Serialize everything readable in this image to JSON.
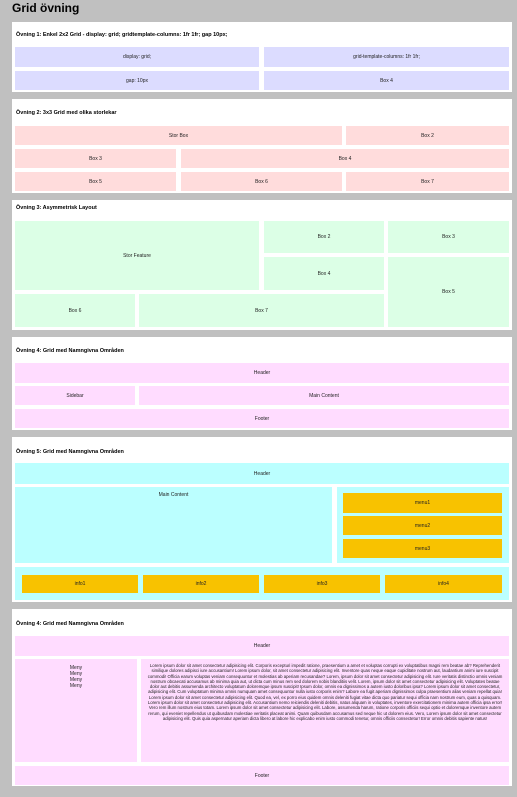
{
  "title": "Grid övning",
  "sections": [
    {
      "heading": "Övning 1: Enkel 2x2 Grid - display: grid; gridtemplate-columns: 1fr 1fr; gap 10px;",
      "cells": [
        "display: grid;",
        "grid-template-columns: 1fr 1fr;",
        "gap: 10px",
        "Box 4"
      ]
    },
    {
      "heading": "Övning 2: 3x3 Grid med olika storlekar",
      "cells": [
        "Stor Box",
        "Box 2",
        "Box 3",
        "Box 4",
        "Box 5",
        "Box 6",
        "Box 7"
      ]
    },
    {
      "heading": "Övning 3: Asymmetrisk Layout",
      "cells": [
        "Stor Feature",
        "Box 2",
        "Box 3",
        "Box 4",
        "Box 5",
        "Box 6",
        "Box 7"
      ]
    },
    {
      "heading": "Övning 4: Grid med Namngivna Områden",
      "cells": [
        "Header",
        "Sidebar",
        "Main Content",
        "Footer"
      ]
    },
    {
      "heading": "Övning 5: Grid med Namngivna Områden",
      "cells": [
        "Header",
        "Main Content",
        "menu1",
        "menu2",
        "menu3",
        "info1",
        "info2",
        "info3",
        "info4"
      ]
    },
    {
      "heading": "Övning 4: Grid med Namngivna Områden",
      "cells": [
        "Header",
        "Lorem ipsum dolor sit amet consectetur adipisicing elit. Corporis excepturi impedit ratione, praesentium a amet et voluptas corrupti ex voluptatibus magni rem beatae ab? Reprehenderit similique dolores adipisci iure accusantium! Lorem ipsum dolor, sit amet consectetur adipisicing elit. Inventore quas neque eaque cupiditate nostrum aut, laudantium animi iure suscipit commodi! Officia earum voluptas veniam consequuntur et molestias ab aperiam recusandae? Lorem, ipsum dolor sit amet consectetur adipisicing elit. Iure veritatis distinctio omnis veniam nostrum obcaecati accusamus ab minima quia aut, ut dicta cum minus rem sed dolorem nobis blanditiis velit. Lorem, ipsum dolor sit amet consectetur adipisicing elit. Voluptates beatae dolor aut debitis assumenda architecto voluptatum doloremque ipsum suscipit! Ipsum dolor, omnis ea dignissimos a autem iusto doloribus ipsa? Lorem ipsum dolor sit amet consectetur, adipisicing elit. Cum voluptatum minima omnis numquam amet consequuntur nulla iusto corporis enim? Labore ea fugit aperiam dignissimos culpa praesentium alias veniam repellat quia! Lorem ipsum dolor sit amet consectetur adipisicing elit. Quod ea, vel, ex porro eius quidem omnis deleniti fugiat vitae dicta quo pariatur sequi officia nam nostrum eum, quas a quisquam. Lorem ipsum dolor sit amet consectetur adipisicing elit. Accusantium nemo reiciendis deleniti debitis, natus aliquam in voluptates, inventore exercitationem minima autem officia ipsa error! Vero rem illum nostrum eius totam. Lorem ipsum dolor sit amet consectetur adipisicing elit. Labore, assumenda harum, ratione corporis officiis sequi optio et doloremque inventore autem rerum, qui eveniet repellendus ut quibusdam molestiae veritatis placeat animi. Quam quibusdam accusamus sed neque hic ut dolorem eius. Vero, Lorem ipsum dolor sit amet consectetur adipisicing elit. Quis quia aspernatur aperiam dicta libero at labore hic explicabo enim iusto commodi tenetur, omnis officiis consectetur! Error omnis debitis sapiente natus!",
        "Footer"
      ],
      "menu_items": [
        "Meny",
        "Meny",
        "Meny",
        "Meny"
      ]
    }
  ]
}
